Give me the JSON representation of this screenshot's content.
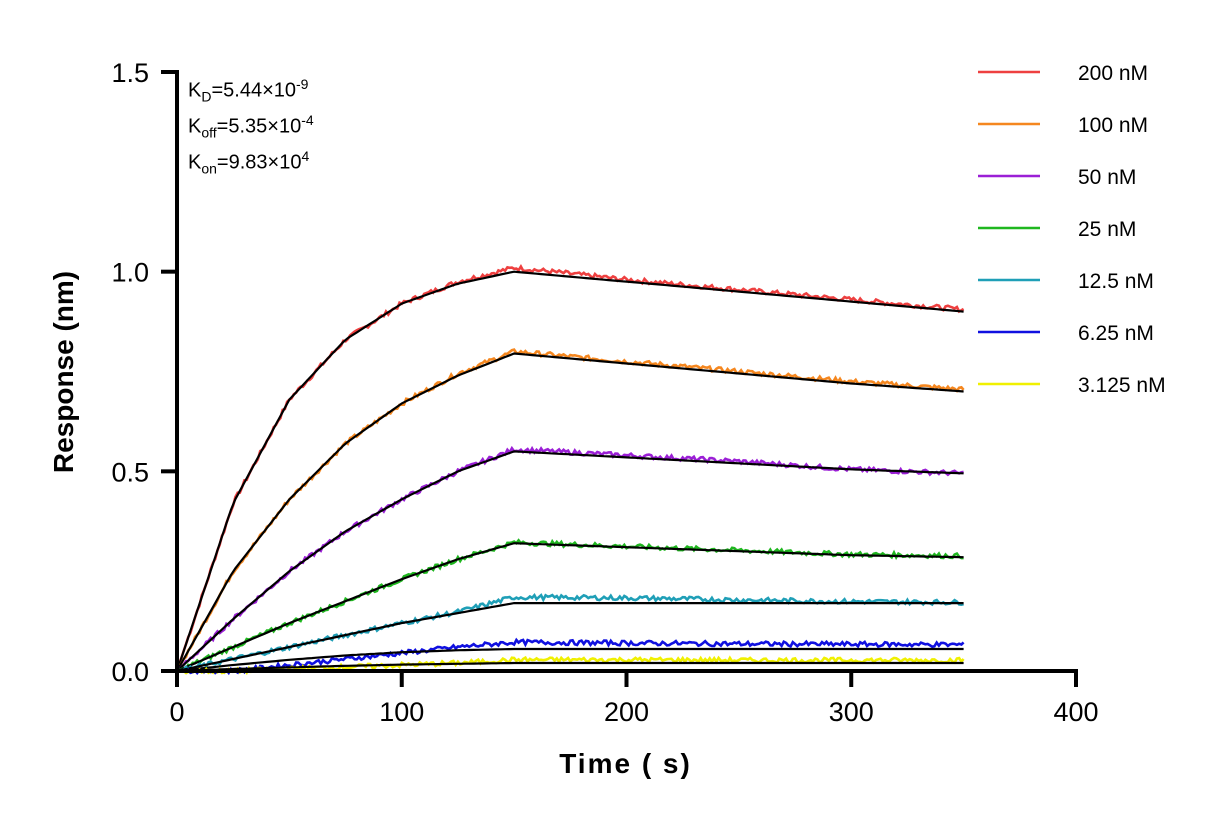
{
  "chart_data": {
    "type": "line",
    "title": "",
    "xlabel": "Time ( s)",
    "ylabel": "Response (nm)",
    "xlim": [
      0,
      400
    ],
    "ylim": [
      0,
      1.5
    ],
    "xticks": [
      "0",
      "100",
      "200",
      "300",
      "400"
    ],
    "yticks": [
      "0.0",
      "0.5",
      "1.0",
      "1.5"
    ],
    "xtick_values": [
      0,
      100,
      200,
      300,
      400
    ],
    "ytick_values": [
      0,
      0.5,
      1.0,
      1.5
    ],
    "grid": false,
    "legend_position": "top-right",
    "annotations": {
      "kd": {
        "sym": "K",
        "sub": "D",
        "val": "=5.44×10",
        "exp": "-9"
      },
      "koff": {
        "sym": "K",
        "sub": "off",
        "val": "=5.35×10",
        "exp": "-4"
      },
      "kon": {
        "sym": "K",
        "sub": "on",
        "val": "=9.83×10",
        "exp": "4"
      }
    },
    "fit_color": "#000000",
    "x": [
      0,
      25,
      50,
      75,
      100,
      125,
      150,
      200,
      250,
      300,
      350
    ],
    "series": [
      {
        "name": "200 nM",
        "color": "#ee4040",
        "measured": [
          0,
          0.42,
          0.68,
          0.83,
          0.92,
          0.975,
          1.01,
          0.98,
          0.955,
          0.93,
          0.905
        ],
        "fit": [
          0,
          0.42,
          0.68,
          0.83,
          0.92,
          0.97,
          1.0,
          0.975,
          0.95,
          0.925,
          0.9
        ]
      },
      {
        "name": "100 nM",
        "color": "#f5871f",
        "measured": [
          0,
          0.25,
          0.43,
          0.57,
          0.67,
          0.745,
          0.8,
          0.775,
          0.75,
          0.725,
          0.705
        ],
        "fit": [
          0,
          0.25,
          0.43,
          0.57,
          0.67,
          0.74,
          0.795,
          0.77,
          0.745,
          0.72,
          0.7
        ]
      },
      {
        "name": "50 nM",
        "color": "#9b1fd6",
        "measured": [
          0,
          0.13,
          0.25,
          0.35,
          0.43,
          0.5,
          0.555,
          0.54,
          0.525,
          0.505,
          0.495
        ],
        "fit": [
          0,
          0.13,
          0.25,
          0.35,
          0.43,
          0.5,
          0.55,
          0.535,
          0.52,
          0.505,
          0.495
        ]
      },
      {
        "name": "25 nM",
        "color": "#1fb71f",
        "measured": [
          0,
          0.06,
          0.12,
          0.175,
          0.23,
          0.28,
          0.322,
          0.312,
          0.302,
          0.292,
          0.288
        ],
        "fit": [
          0,
          0.06,
          0.12,
          0.175,
          0.23,
          0.28,
          0.32,
          0.31,
          0.3,
          0.29,
          0.285
        ]
      },
      {
        "name": "12.5 nM",
        "color": "#1f9fb7",
        "measured": [
          0,
          0.03,
          0.06,
          0.09,
          0.12,
          0.148,
          0.185,
          0.183,
          0.178,
          0.174,
          0.172
        ],
        "fit": [
          0,
          0.03,
          0.06,
          0.09,
          0.12,
          0.145,
          0.17,
          0.17,
          0.17,
          0.17,
          0.17
        ]
      },
      {
        "name": "6.25 nM",
        "color": "#1010e0",
        "measured": [
          0,
          0.0,
          0.015,
          0.03,
          0.045,
          0.06,
          0.072,
          0.07,
          0.068,
          0.067,
          0.066
        ],
        "fit": [
          0,
          0.015,
          0.028,
          0.039,
          0.047,
          0.052,
          0.055,
          0.055,
          0.055,
          0.055,
          0.055
        ]
      },
      {
        "name": "3.125 nM",
        "color": "#f0f000",
        "measured": [
          0,
          0.0,
          0.005,
          0.01,
          0.015,
          0.02,
          0.028,
          0.028,
          0.027,
          0.027,
          0.027
        ],
        "fit": [
          0,
          0.005,
          0.009,
          0.013,
          0.016,
          0.018,
          0.02,
          0.02,
          0.02,
          0.02,
          0.02
        ]
      }
    ]
  }
}
